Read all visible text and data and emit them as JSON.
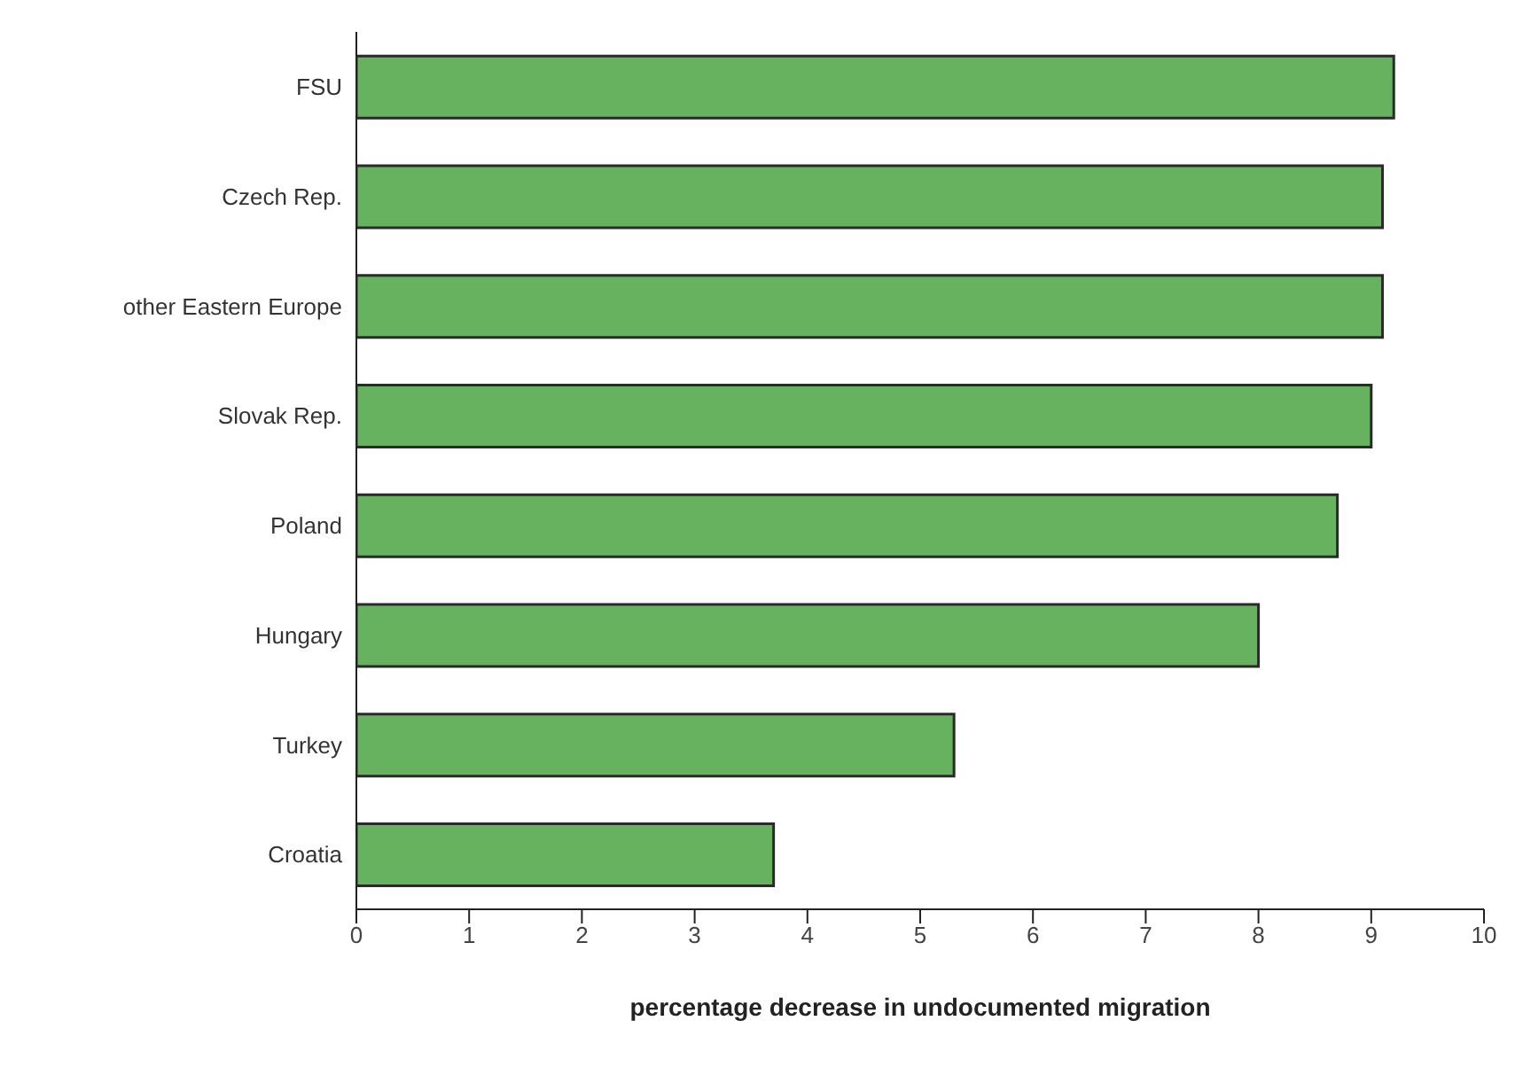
{
  "chart_data": {
    "type": "bar",
    "orientation": "horizontal",
    "xlabel": "percentage decrease in undocumented migration",
    "categories": [
      "FSU",
      "Czech Rep.",
      "other Eastern Europe",
      "Slovak Rep.",
      "Poland",
      "Hungary",
      "Turkey",
      "Croatia"
    ],
    "values": [
      9.2,
      9.1,
      9.1,
      9.0,
      8.7,
      8.0,
      5.3,
      3.7
    ],
    "color": "#66b25f",
    "xlim": [
      0,
      10
    ],
    "xticks": [
      0,
      1,
      2,
      3,
      4,
      5,
      6,
      7,
      8,
      9,
      10
    ],
    "grid": false
  }
}
